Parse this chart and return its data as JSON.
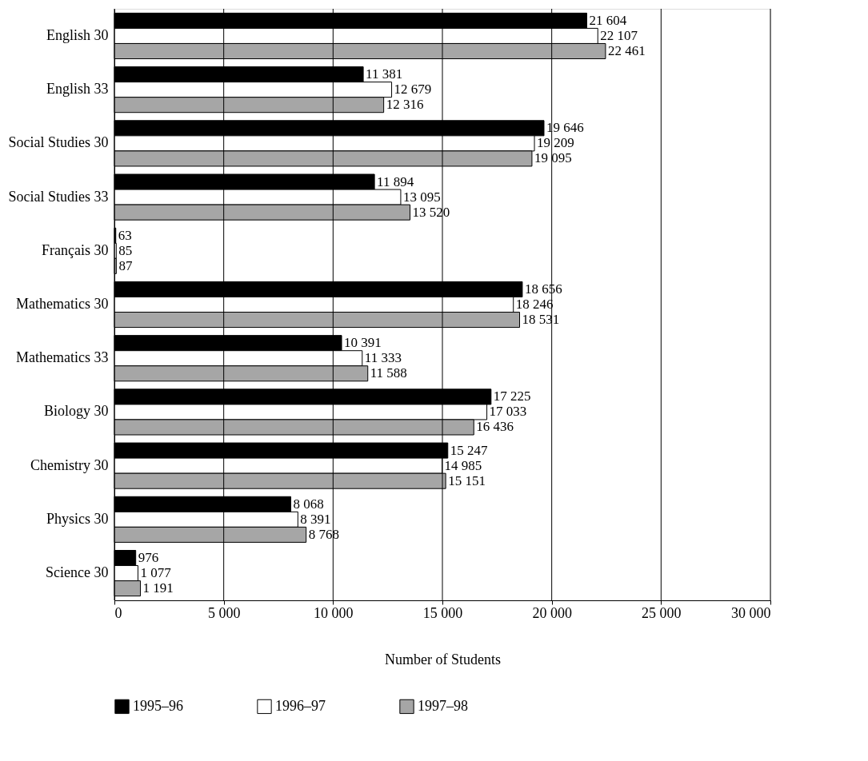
{
  "chart_data": {
    "type": "bar",
    "orientation": "horizontal",
    "xlabel": "Number of Students",
    "categories": [
      "English 30",
      "English 33",
      "Social Studies 30",
      "Social Studies 33",
      "Français 30",
      "Mathematics 30",
      "Mathematics 33",
      "Biology 30",
      "Chemistry 30",
      "Physics 30",
      "Science 30"
    ],
    "series": [
      {
        "name": "1995–96",
        "color": "#000000",
        "values": [
          21604,
          11381,
          19646,
          11894,
          63,
          18656,
          10391,
          17225,
          15247,
          8068,
          976
        ],
        "value_labels": [
          "21 604",
          "11 381",
          "19 646",
          "11 894",
          "63",
          "18 656",
          "10 391",
          "17 225",
          "15 247",
          "8 068",
          "976"
        ]
      },
      {
        "name": "1996–97",
        "color": "#ffffff",
        "values": [
          22107,
          12679,
          19209,
          13095,
          85,
          18246,
          11333,
          17033,
          14985,
          8391,
          1077
        ],
        "value_labels": [
          "22 107",
          "12 679",
          "19 209",
          "13 095",
          "85",
          "18 246",
          "11 333",
          "17 033",
          "14 985",
          "8 391",
          "1 077"
        ]
      },
      {
        "name": "1997–98",
        "color": "#a6a6a6",
        "values": [
          22461,
          12316,
          19095,
          13520,
          87,
          18531,
          11588,
          16436,
          15151,
          8768,
          1191
        ],
        "value_labels": [
          "22 461",
          "12 316",
          "19 095",
          "13 520",
          "87",
          "18 531",
          "11 588",
          "16 436",
          "15 151",
          "8 768",
          "1 191"
        ]
      }
    ],
    "xlim": [
      0,
      30000
    ],
    "xticks": [
      {
        "value": 0,
        "label": "0"
      },
      {
        "value": 5000,
        "label": "5 000"
      },
      {
        "value": 10000,
        "label": "10 000"
      },
      {
        "value": 15000,
        "label": "15 000"
      },
      {
        "value": 20000,
        "label": "20 000"
      },
      {
        "value": 25000,
        "label": "25 000"
      },
      {
        "value": 30000,
        "label": "30 000"
      }
    ],
    "grid": "x",
    "legend": "bottom"
  }
}
